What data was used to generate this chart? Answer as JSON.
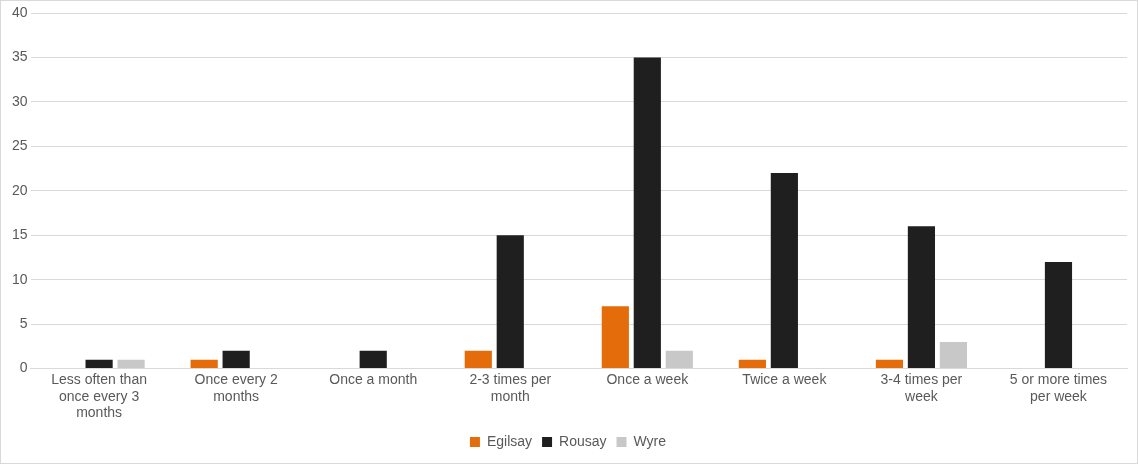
{
  "chart_data": {
    "type": "bar",
    "categories": [
      "Less often than once every 3 months",
      "Once every 2 months",
      "Once a month",
      "2-3 times per month",
      "Once a week",
      "Twice a week",
      "3-4 times per week",
      "5 or more times per week"
    ],
    "series": [
      {
        "name": "Egilsay",
        "color": "#e46c0a",
        "values": [
          0,
          1,
          0,
          2,
          7,
          1,
          1,
          0
        ]
      },
      {
        "name": "Rousay",
        "color": "#1f1f1f",
        "values": [
          1,
          2,
          2,
          15,
          35,
          22,
          16,
          12
        ]
      },
      {
        "name": "Wyre",
        "color": "#c8c8c8",
        "values": [
          1,
          0,
          0,
          0,
          2,
          0,
          3,
          0
        ]
      }
    ],
    "ylim": [
      0,
      40
    ],
    "yticks": [
      0,
      5,
      10,
      15,
      20,
      25,
      30,
      35,
      40
    ],
    "grid": "y",
    "legend": "bottom"
  }
}
